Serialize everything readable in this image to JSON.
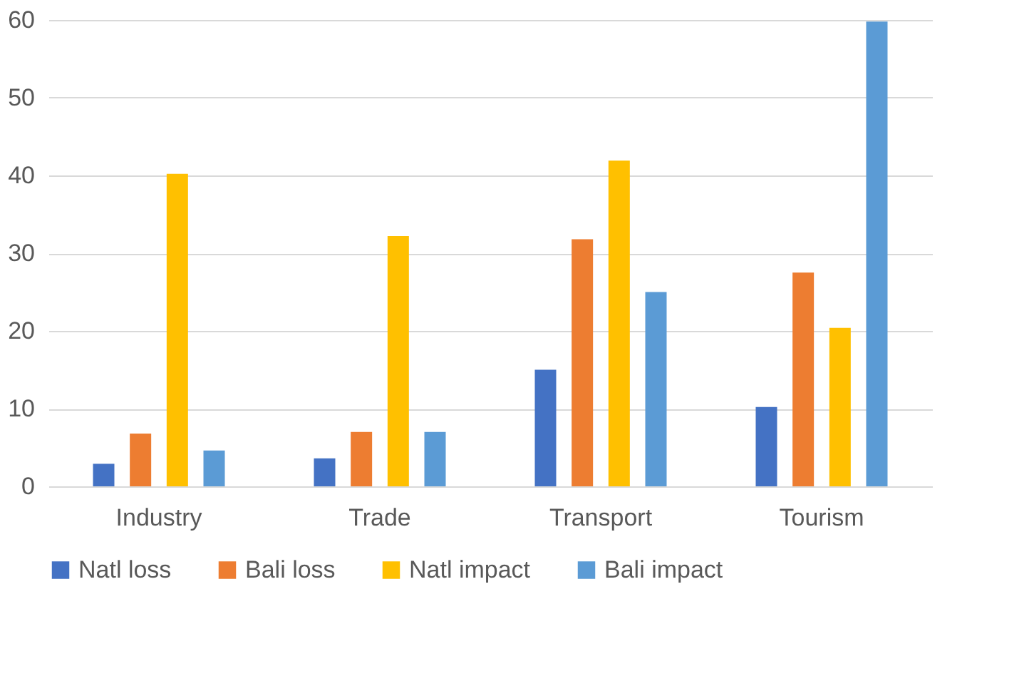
{
  "chart_data": {
    "type": "bar",
    "categories": [
      "Industry",
      "Trade",
      "Transport",
      "Tourism"
    ],
    "series": [
      {
        "name": "Natl loss",
        "color": "#4472c4",
        "values": [
          2.9,
          3.6,
          15.0,
          10.2
        ]
      },
      {
        "name": "Bali loss",
        "color": "#ed7d31",
        "values": [
          6.8,
          7.0,
          31.8,
          27.5
        ]
      },
      {
        "name": "Natl impact",
        "color": "#ffc000",
        "values": [
          40.2,
          32.2,
          41.9,
          20.4
        ]
      },
      {
        "name": "Bali impact",
        "color": "#5b9bd5",
        "values": [
          4.6,
          7.0,
          25.0,
          59.8
        ]
      }
    ],
    "ylim": [
      0,
      60
    ],
    "yticks": [
      0,
      10,
      20,
      30,
      40,
      50,
      60
    ],
    "grid": "y",
    "legend": "bottom"
  }
}
